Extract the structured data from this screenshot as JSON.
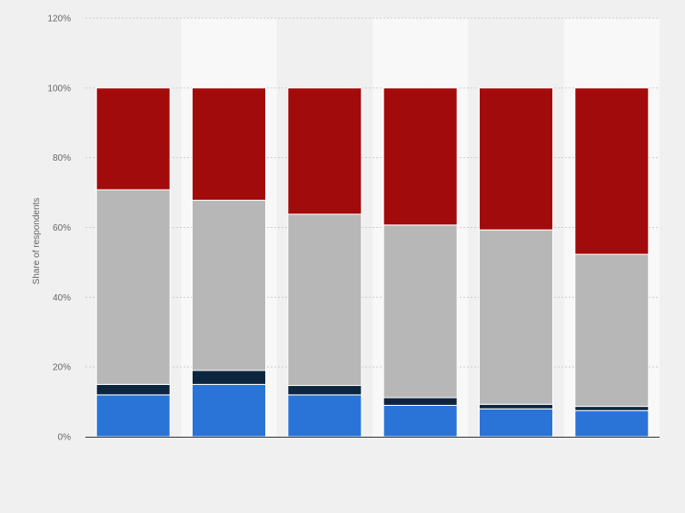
{
  "chart_data": {
    "type": "bar",
    "stacked": true,
    "title": "",
    "xlabel": "",
    "ylabel": "Share of respondents",
    "ylim": [
      0,
      120
    ],
    "yticks": [
      0,
      20,
      40,
      60,
      80,
      100,
      120
    ],
    "ytick_labels": [
      "0%",
      "20%",
      "40%",
      "60%",
      "80%",
      "100%",
      "120%"
    ],
    "grid": true,
    "legend": "none",
    "categories": [
      "",
      "",
      "",
      "",
      "",
      ""
    ],
    "series": [
      {
        "color": "#2a74d8",
        "values": [
          12,
          15,
          12,
          9,
          8,
          7.5
        ]
      },
      {
        "color": "#0d2640",
        "values": [
          3,
          4,
          2.7,
          2.2,
          1.3,
          1.2
        ]
      },
      {
        "color": "#b7b7b7",
        "values": [
          55.8,
          48.8,
          49.1,
          49.5,
          50,
          43.6
        ]
      },
      {
        "color": "#a10b0b",
        "values": [
          29.2,
          32.2,
          36.2,
          39.3,
          40.7,
          47.7
        ]
      }
    ]
  },
  "colors": {
    "page_background": "#f0f0f0",
    "plot_band": "#f8f8f8",
    "grid": "#cccccc",
    "axis": "#333333"
  }
}
